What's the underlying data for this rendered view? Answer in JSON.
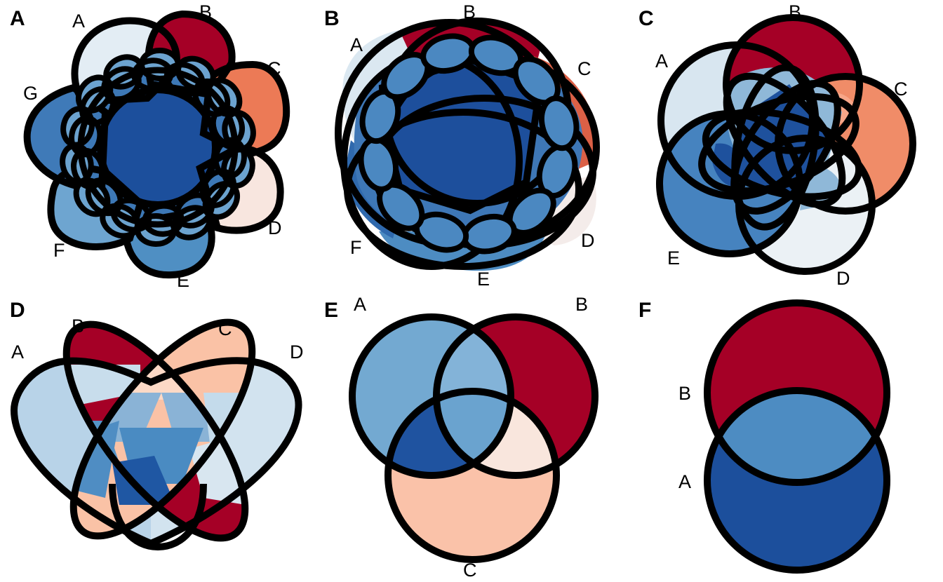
{
  "panels": [
    {
      "letter": "A",
      "sets": [
        "A",
        "B",
        "C",
        "D",
        "E",
        "F",
        "G"
      ],
      "colors": {
        "A": "#e3edf4",
        "B": "#a50026",
        "C": "#ec7a56",
        "D": "#f8e6df",
        "E": "#4f8fc3",
        "F": "#6ea5d0",
        "G": "#3f7ab8",
        "center": "#1c4f9c",
        "ring": "#3d78b6",
        "loops": "#6ca3cf"
      }
    },
    {
      "letter": "B",
      "sets": [
        "A",
        "B",
        "C",
        "D",
        "E",
        "F"
      ],
      "colors": {
        "A": "#dbe8f1",
        "B": "#a50026",
        "C": "#db6046",
        "D": "#f4ecea",
        "E": "#4d8cc2",
        "F": "#2f69ad",
        "center": "#1d4f9c",
        "ring": "#3e77b6",
        "loops": "#4b88c1"
      }
    },
    {
      "letter": "C",
      "sets": [
        "A",
        "B",
        "C",
        "D",
        "E"
      ],
      "colors": {
        "A": "#d8e6f0",
        "B": "#a50026",
        "C": "#f08c68",
        "D": "#ebf1f5",
        "E": "#4683bf",
        "center": "#1e519d",
        "mid": "#8fb8d8",
        "accent": "#f7a688"
      }
    },
    {
      "letter": "D",
      "sets": [
        "A",
        "B",
        "C",
        "D"
      ],
      "colors": {
        "A": "#b8d3e8",
        "B": "#a50026",
        "C": "#fac2a6",
        "D": "#d2e3ef",
        "AB": "#c8ddec",
        "BC": "#fcd9c6",
        "CD": "#c4dbeb",
        "ABC": "#8ab3d6",
        "BCD": "#8ab3d6",
        "AC": "#4f8dc3",
        "BD": "#d8e6f0",
        "ABD": "#5594c7",
        "ACD": "#1f57a3",
        "ABCD": "#4a8bc2"
      }
    },
    {
      "letter": "E",
      "sets": [
        "A",
        "B",
        "C"
      ],
      "colors": {
        "A": "#73a9d1",
        "B": "#a50026",
        "C": "#fac2a9",
        "AB": "#83b3d8",
        "AC": "#1f53a0",
        "BC": "#f9e6dd",
        "ABC": "#6aa3cf"
      }
    },
    {
      "letter": "F",
      "sets": [
        "B",
        "A"
      ],
      "colors": {
        "A": "#1c4f9c",
        "B": "#a50026",
        "AB": "#4d8cc2"
      }
    }
  ]
}
